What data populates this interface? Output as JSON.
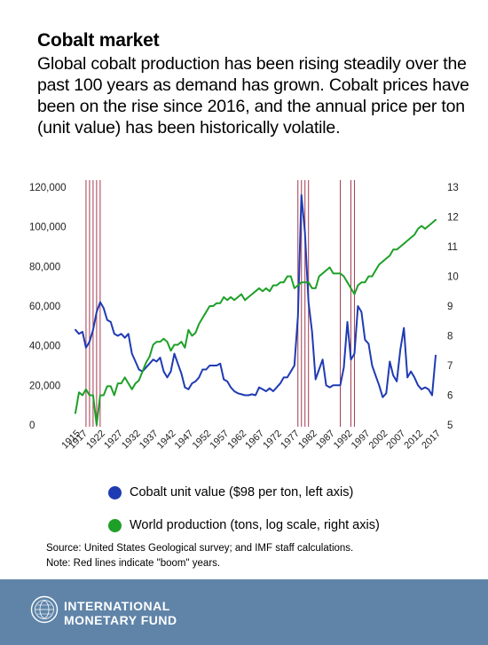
{
  "header": {
    "title": "Cobalt market",
    "subtitle": "Global cobalt production has been rising steadily over the past 100 years as demand has grown. Cobalt prices have been on the rise since 2016, and the annual price per ton (unit value) has been historically volatile."
  },
  "chart_data": {
    "type": "line",
    "title": "",
    "x_ticks": [
      "1915",
      "1917",
      "1922",
      "1927",
      "1932",
      "1937",
      "1942",
      "1947",
      "1952",
      "1957",
      "1962",
      "1967",
      "1972",
      "1977",
      "1982",
      "1987",
      "1992",
      "1997",
      "2002",
      "2007",
      "2012",
      "2017"
    ],
    "x_range": [
      1915,
      2017
    ],
    "left_axis": {
      "ticks": [
        "0",
        "20,000",
        "40,000",
        "60,000",
        "80,000",
        "100,000",
        "120,000"
      ],
      "range": [
        0,
        120000
      ]
    },
    "right_axis": {
      "ticks": [
        "5",
        "6",
        "7",
        "8",
        "9",
        "10",
        "11",
        "12",
        "13"
      ],
      "range": [
        5,
        13
      ],
      "scale": "log"
    },
    "boom_years": [
      1918,
      1919,
      1920,
      1921,
      1922,
      1978,
      1979,
      1980,
      1981,
      1990,
      1993,
      1994
    ],
    "boom_line_color": "#a23b50",
    "grid": false,
    "legend_position": "bottom",
    "series": [
      {
        "name": "Cobalt unit value ($98 per ton, left axis)",
        "axis": "left",
        "color": "#1f3bb3",
        "x": [
          1915,
          1916,
          1917,
          1918,
          1919,
          1920,
          1921,
          1922,
          1923,
          1924,
          1925,
          1926,
          1927,
          1928,
          1929,
          1930,
          1931,
          1932,
          1933,
          1934,
          1935,
          1936,
          1937,
          1938,
          1939,
          1940,
          1941,
          1942,
          1943,
          1944,
          1945,
          1946,
          1947,
          1948,
          1949,
          1950,
          1951,
          1952,
          1953,
          1954,
          1955,
          1956,
          1957,
          1958,
          1959,
          1960,
          1961,
          1962,
          1963,
          1964,
          1965,
          1966,
          1967,
          1968,
          1969,
          1970,
          1971,
          1972,
          1973,
          1974,
          1975,
          1976,
          1977,
          1978,
          1979,
          1980,
          1981,
          1982,
          1983,
          1984,
          1985,
          1986,
          1987,
          1988,
          1989,
          1990,
          1991,
          1992,
          1993,
          1994,
          1995,
          1996,
          1997,
          1998,
          1999,
          2000,
          2001,
          2002,
          2003,
          2004,
          2005,
          2006,
          2007,
          2008,
          2009,
          2010,
          2011,
          2012,
          2013,
          2014,
          2015,
          2016,
          2017
        ],
        "values": [
          48000,
          46000,
          47000,
          39000,
          42000,
          48000,
          57000,
          62000,
          59000,
          53000,
          52000,
          46000,
          45000,
          46000,
          44000,
          46000,
          36000,
          32000,
          28000,
          27000,
          29000,
          31000,
          33000,
          32000,
          34000,
          27000,
          24000,
          27000,
          36000,
          31000,
          26000,
          19000,
          18000,
          21000,
          22000,
          24000,
          28000,
          28000,
          30000,
          30000,
          30000,
          31000,
          23000,
          22000,
          19000,
          17000,
          16000,
          15500,
          15000,
          15000,
          15500,
          15000,
          19000,
          18000,
          17000,
          18500,
          17000,
          19000,
          21000,
          24000,
          24000,
          27000,
          30000,
          55000,
          116000,
          97000,
          62000,
          47000,
          23000,
          28000,
          33000,
          20000,
          19000,
          20000,
          20000,
          20000,
          29000,
          52000,
          33000,
          36000,
          60000,
          57000,
          43000,
          41000,
          30000,
          25000,
          20000,
          14000,
          16000,
          32000,
          25000,
          22000,
          38000,
          49000,
          24000,
          27000,
          24000,
          20000,
          18000,
          19000,
          18000,
          15000,
          35000
        ]
      },
      {
        "name": "World production (tons, log scale, right axis)",
        "axis": "right",
        "color": "#1ea028",
        "x": [
          1915,
          1916,
          1917,
          1918,
          1919,
          1920,
          1921,
          1922,
          1923,
          1924,
          1925,
          1926,
          1927,
          1928,
          1929,
          1930,
          1931,
          1932,
          1933,
          1934,
          1935,
          1936,
          1937,
          1938,
          1939,
          1940,
          1941,
          1942,
          1943,
          1944,
          1945,
          1946,
          1947,
          1948,
          1949,
          1950,
          1951,
          1952,
          1953,
          1954,
          1955,
          1956,
          1957,
          1958,
          1959,
          1960,
          1961,
          1962,
          1963,
          1964,
          1965,
          1966,
          1967,
          1968,
          1969,
          1970,
          1971,
          1972,
          1973,
          1974,
          1975,
          1976,
          1977,
          1978,
          1979,
          1980,
          1981,
          1982,
          1983,
          1984,
          1985,
          1986,
          1987,
          1988,
          1989,
          1990,
          1991,
          1992,
          1993,
          1994,
          1995,
          1996,
          1997,
          1998,
          1999,
          2000,
          2001,
          2002,
          2003,
          2004,
          2005,
          2006,
          2007,
          2008,
          2009,
          2010,
          2011,
          2012,
          2013,
          2014,
          2015,
          2016,
          2017
        ],
        "values": [
          5.4,
          6.1,
          6.0,
          6.2,
          6.0,
          6.0,
          5.0,
          6.0,
          6.0,
          6.3,
          6.3,
          6.0,
          6.4,
          6.4,
          6.6,
          6.4,
          6.2,
          6.4,
          6.5,
          6.8,
          7.1,
          7.3,
          7.7,
          7.8,
          7.8,
          7.9,
          7.8,
          7.5,
          7.7,
          7.7,
          7.8,
          7.6,
          8.2,
          8.0,
          8.1,
          8.4,
          8.6,
          8.8,
          9.0,
          9.0,
          9.1,
          9.1,
          9.3,
          9.2,
          9.3,
          9.2,
          9.3,
          9.4,
          9.2,
          9.3,
          9.4,
          9.5,
          9.6,
          9.5,
          9.6,
          9.5,
          9.7,
          9.7,
          9.8,
          9.8,
          10.0,
          10.0,
          9.6,
          9.7,
          9.8,
          9.8,
          9.8,
          9.6,
          9.6,
          10.0,
          10.1,
          10.2,
          10.3,
          10.1,
          10.1,
          10.1,
          10.0,
          9.8,
          9.6,
          9.4,
          9.7,
          9.8,
          9.8,
          10.0,
          10.0,
          10.2,
          10.4,
          10.5,
          10.6,
          10.7,
          10.9,
          10.9,
          11.0,
          11.1,
          11.2,
          11.3,
          11.4,
          11.6,
          11.7,
          11.6,
          11.7,
          11.8,
          11.9
        ]
      }
    ]
  },
  "legend": {
    "value_label": "Cobalt unit value ($98 per ton, left axis)",
    "value_color": "#1f3bb3",
    "production_label": "World production (tons, log scale, right axis)",
    "production_color": "#1ea028"
  },
  "notes": {
    "source": "Source: United States Geological survey; and IMF staff calculations.",
    "note": "Note: Red lines indicate \"boom\" years."
  },
  "footer": {
    "org_name": "INTERNATIONAL\nMONETARY FUND",
    "logo_icon": "imf-seal-icon",
    "background_color": "#5f84a8"
  }
}
